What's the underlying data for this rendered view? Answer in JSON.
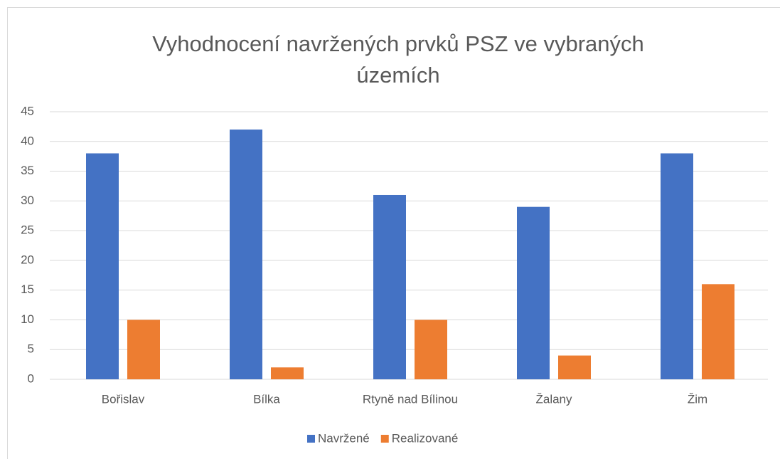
{
  "chart_data": {
    "type": "bar",
    "title": "Vyhodnocení navržených prvků PSZ ve vybraných územích",
    "categories": [
      "Bořislav",
      "Bílka",
      "Rtyně nad Bílinou",
      "Žalany",
      "Žim"
    ],
    "series": [
      {
        "name": "Navržené",
        "color": "#4472c4",
        "values": [
          38,
          42,
          31,
          29,
          38
        ]
      },
      {
        "name": "Realizované",
        "color": "#ed7d31",
        "values": [
          10,
          2,
          10,
          4,
          16
        ]
      }
    ],
    "ylim": [
      0,
      45
    ],
    "yticks": [
      0,
      5,
      10,
      15,
      20,
      25,
      30,
      35,
      40,
      45
    ],
    "grid": true,
    "legend": "bottom"
  }
}
